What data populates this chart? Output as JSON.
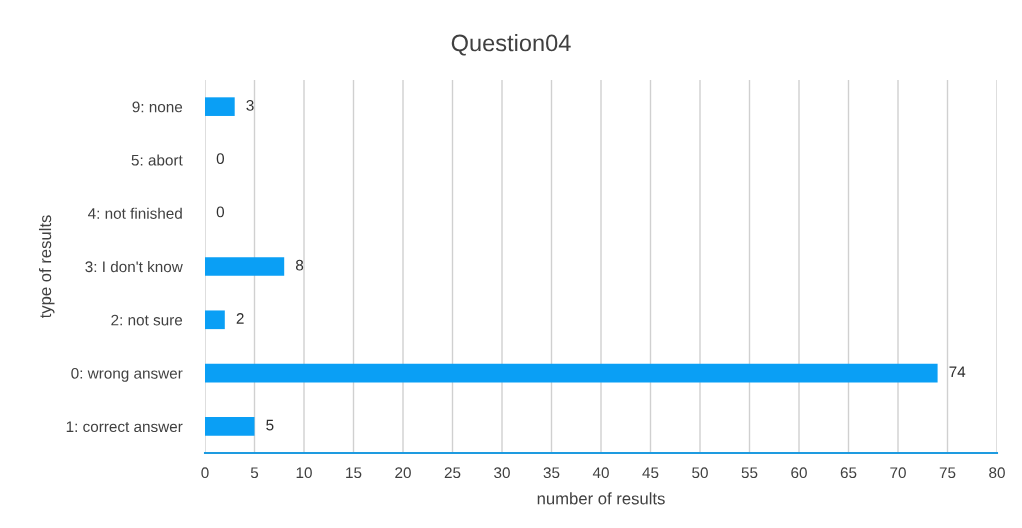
{
  "chart_data": {
    "type": "bar",
    "orientation": "horizontal",
    "title": "Question04",
    "xlabel": "number of results",
    "ylabel": "type of results",
    "categories": [
      "9: none",
      "5: abort",
      "4: not finished",
      "3: I don't know",
      "2: not sure",
      "0: wrong answer",
      "1: correct answer"
    ],
    "values": [
      3,
      0,
      0,
      8,
      2,
      74,
      5
    ],
    "color": "#0a9ff5",
    "xlim": [
      0,
      80
    ],
    "xticks": [
      0,
      5,
      10,
      15,
      20,
      25,
      30,
      35,
      40,
      45,
      50,
      55,
      60,
      65,
      70,
      75,
      80
    ],
    "grid": "x",
    "data_labels": true
  }
}
